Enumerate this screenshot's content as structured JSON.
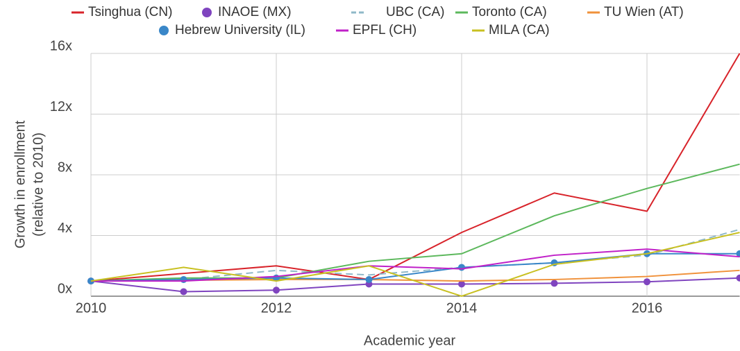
{
  "chart_data": {
    "type": "line",
    "xlabel": "Academic year",
    "ylabel": [
      "Growth in enrollment",
      "(relative to 2010)"
    ],
    "x": [
      2010,
      2011,
      2012,
      2013,
      2014,
      2015,
      2016,
      2017
    ],
    "xlim": [
      2010,
      2017
    ],
    "xticks": [
      2010,
      2012,
      2014,
      2016
    ],
    "ylim": [
      0,
      16
    ],
    "yticks": [
      {
        "value": 0,
        "label": "0x"
      },
      {
        "value": 4,
        "label": "4x"
      },
      {
        "value": 8,
        "label": "8x"
      },
      {
        "value": 12,
        "label": "12x"
      },
      {
        "value": 16,
        "label": "16x"
      }
    ],
    "grid": true,
    "series": [
      {
        "name": "Tsinghua (CN)",
        "color": "#d8232a",
        "values": [
          1,
          1.5,
          2.0,
          1.1,
          4.2,
          6.8,
          5.6,
          16
        ]
      },
      {
        "name": "INAOE (MX)",
        "color": "#7f44bf",
        "marker": "circle",
        "values": [
          1,
          0.3,
          0.4,
          0.8,
          0.8,
          0.85,
          0.95,
          1.2
        ]
      },
      {
        "name": "UBC (CA)",
        "color": "#8fb8c8",
        "dash": true,
        "values": [
          1,
          1.1,
          1.7,
          1.4,
          1.9,
          2.2,
          2.7,
          4.4
        ]
      },
      {
        "name": "Toronto (CA)",
        "color": "#5cb85c",
        "values": [
          1,
          1.2,
          1.2,
          2.3,
          2.8,
          5.3,
          7.1,
          8.7
        ]
      },
      {
        "name": "TU Wien (AT)",
        "color": "#f0913a",
        "values": [
          1,
          1.05,
          1.1,
          1.1,
          1.0,
          1.1,
          1.3,
          1.7
        ]
      },
      {
        "name": "Hebrew University (IL)",
        "color": "#3a87c8",
        "marker": "circle",
        "values": [
          1,
          1.1,
          1.2,
          1.1,
          1.9,
          2.2,
          2.8,
          2.8
        ]
      },
      {
        "name": "EPFL (CH)",
        "color": "#c020c8",
        "values": [
          1,
          1.0,
          1.3,
          2.0,
          1.8,
          2.7,
          3.1,
          2.6
        ]
      },
      {
        "name": "MILA (CA)",
        "color": "#c8c020",
        "values": [
          1,
          1.9,
          1.0,
          2.0,
          0,
          2.1,
          2.8,
          4.2
        ]
      }
    ]
  }
}
